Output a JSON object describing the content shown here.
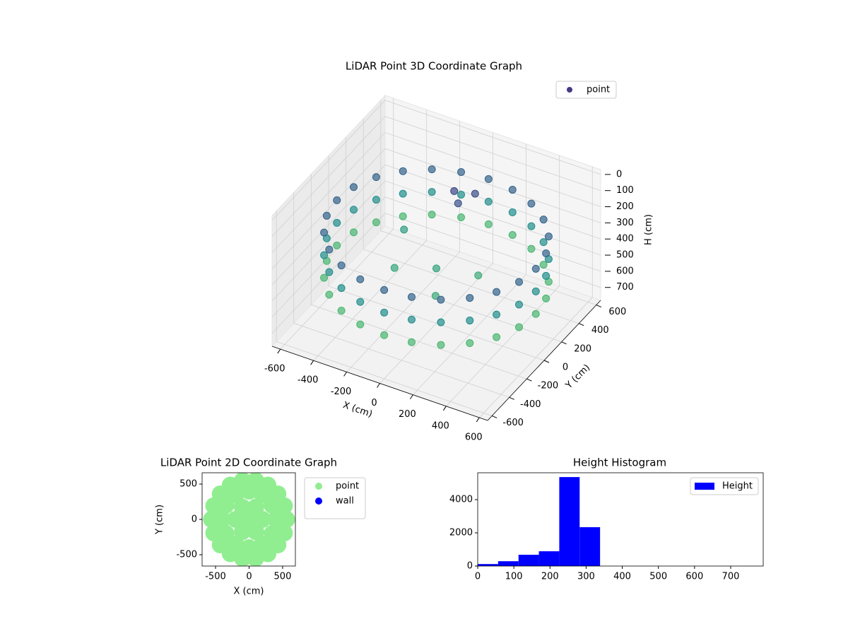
{
  "chart_data": [
    {
      "type": "scatter3d",
      "title": "LiDAR Point 3D Coordinate Graph",
      "x_label": "X (cm)",
      "y_label": "Y (cm)",
      "z_label": "H (cm)",
      "xlim": [
        -650,
        650
      ],
      "ylim": [
        -650,
        650
      ],
      "zlim": [
        -30,
        780
      ],
      "z_inverted": true,
      "xticks": [
        -600,
        -400,
        -200,
        0,
        200,
        400,
        600
      ],
      "yticks": [
        -600,
        -400,
        -200,
        0,
        200,
        400,
        600
      ],
      "zticks": [
        0,
        100,
        200,
        300,
        400,
        500,
        600,
        700
      ],
      "colormap": "viridis",
      "grid": true,
      "legend": "upper right",
      "series": [
        {
          "name": "point",
          "color": "#443983",
          "x": [
            600,
            580,
            520,
            424,
            300,
            155,
            0,
            -155,
            -300,
            -424,
            -520,
            -580,
            -600,
            -580,
            -520,
            -424,
            -300,
            -155,
            0,
            155,
            300,
            424,
            520,
            580,
            600,
            580,
            520,
            424,
            300,
            155,
            0,
            -155,
            -300,
            -424,
            -520,
            -580,
            -600,
            -580,
            -520,
            -424,
            -300,
            -155,
            0,
            155,
            300,
            424,
            520,
            580,
            600,
            580,
            520,
            424,
            300,
            155,
            0,
            -155,
            -300,
            -424,
            -520,
            -580,
            -600,
            -580,
            -520,
            -424,
            -300,
            -155,
            0,
            155,
            300,
            424,
            520,
            580,
            -50,
            0,
            50,
            -200,
            100,
            -300,
            200,
            0
          ],
          "y": [
            0,
            155,
            300,
            424,
            520,
            580,
            600,
            580,
            520,
            424,
            300,
            155,
            0,
            -155,
            -300,
            -424,
            -520,
            -580,
            -600,
            -580,
            -520,
            -424,
            -300,
            -155,
            0,
            155,
            300,
            424,
            520,
            580,
            600,
            580,
            520,
            424,
            300,
            155,
            0,
            -155,
            -300,
            -424,
            -520,
            -580,
            -600,
            -580,
            -520,
            -424,
            -300,
            -155,
            0,
            155,
            300,
            424,
            520,
            580,
            600,
            580,
            520,
            424,
            300,
            155,
            0,
            -155,
            -300,
            -424,
            -520,
            -580,
            -600,
            -580,
            -520,
            -424,
            -300,
            -155,
            300,
            250,
            350,
            -100,
            -200,
            200,
            100,
            0
          ],
          "z": [
            230,
            230,
            230,
            230,
            230,
            230,
            230,
            230,
            230,
            230,
            230,
            230,
            230,
            230,
            230,
            230,
            230,
            230,
            230,
            230,
            230,
            230,
            230,
            230,
            370,
            370,
            370,
            370,
            370,
            370,
            370,
            370,
            370,
            370,
            370,
            370,
            370,
            370,
            370,
            370,
            370,
            370,
            370,
            370,
            370,
            370,
            370,
            370,
            510,
            510,
            510,
            510,
            510,
            510,
            510,
            510,
            510,
            510,
            510,
            510,
            510,
            510,
            510,
            510,
            510,
            510,
            510,
            510,
            510,
            510,
            510,
            510,
            150,
            180,
            160,
            450,
            460,
            420,
            470,
            440
          ]
        }
      ]
    },
    {
      "type": "scatter",
      "title": "LiDAR Point 2D Coordinate Graph",
      "x_label": "X (cm)",
      "y_label": "Y (cm)",
      "xlim": [
        -700,
        690
      ],
      "ylim": [
        -660,
        660
      ],
      "xticks": [
        -500,
        0,
        500
      ],
      "yticks": [
        -500,
        0,
        500
      ],
      "legend": "outside right",
      "series": [
        {
          "name": "point",
          "color": "#90ee90",
          "x": [
            0,
            200,
            100,
            -100,
            -200,
            -100,
            100,
            400,
            346,
            200,
            0,
            -200,
            -346,
            -400,
            -346,
            -200,
            0,
            200,
            346,
            560,
            526,
            429,
            280,
            97,
            -97,
            -280,
            -429,
            -526,
            -560,
            -526,
            -429,
            -280,
            -97,
            97,
            280,
            429,
            526
          ],
          "y": [
            0,
            0,
            173,
            173,
            0,
            -173,
            -173,
            0,
            200,
            346,
            400,
            346,
            200,
            0,
            -200,
            -346,
            -400,
            -346,
            -200,
            0,
            192,
            360,
            485,
            551,
            551,
            485,
            360,
            192,
            0,
            -192,
            -360,
            -485,
            -551,
            -551,
            -485,
            -360,
            -192
          ]
        },
        {
          "name": "wall",
          "color": "#0000ff",
          "x": [],
          "y": []
        }
      ]
    },
    {
      "type": "histogram",
      "title": "Height Histogram",
      "legend": "upper right",
      "xlim": [
        0,
        790
      ],
      "ylim": [
        0,
        5620
      ],
      "xticks": [
        0,
        100,
        200,
        300,
        400,
        500,
        600,
        700
      ],
      "yticks": [
        0,
        2000,
        4000
      ],
      "bins": [
        0,
        56.4,
        112.9,
        169.3,
        225.7,
        282.1,
        338.6,
        395,
        451.4,
        507.9,
        564.3,
        620.7,
        677.1,
        733.6,
        790
      ],
      "series": [
        {
          "name": "Height",
          "color": "#0000ff",
          "values": [
            120,
            290,
            680,
            890,
            5360,
            2340,
            0,
            0,
            0,
            0,
            0,
            0,
            0,
            1
          ]
        }
      ]
    }
  ]
}
